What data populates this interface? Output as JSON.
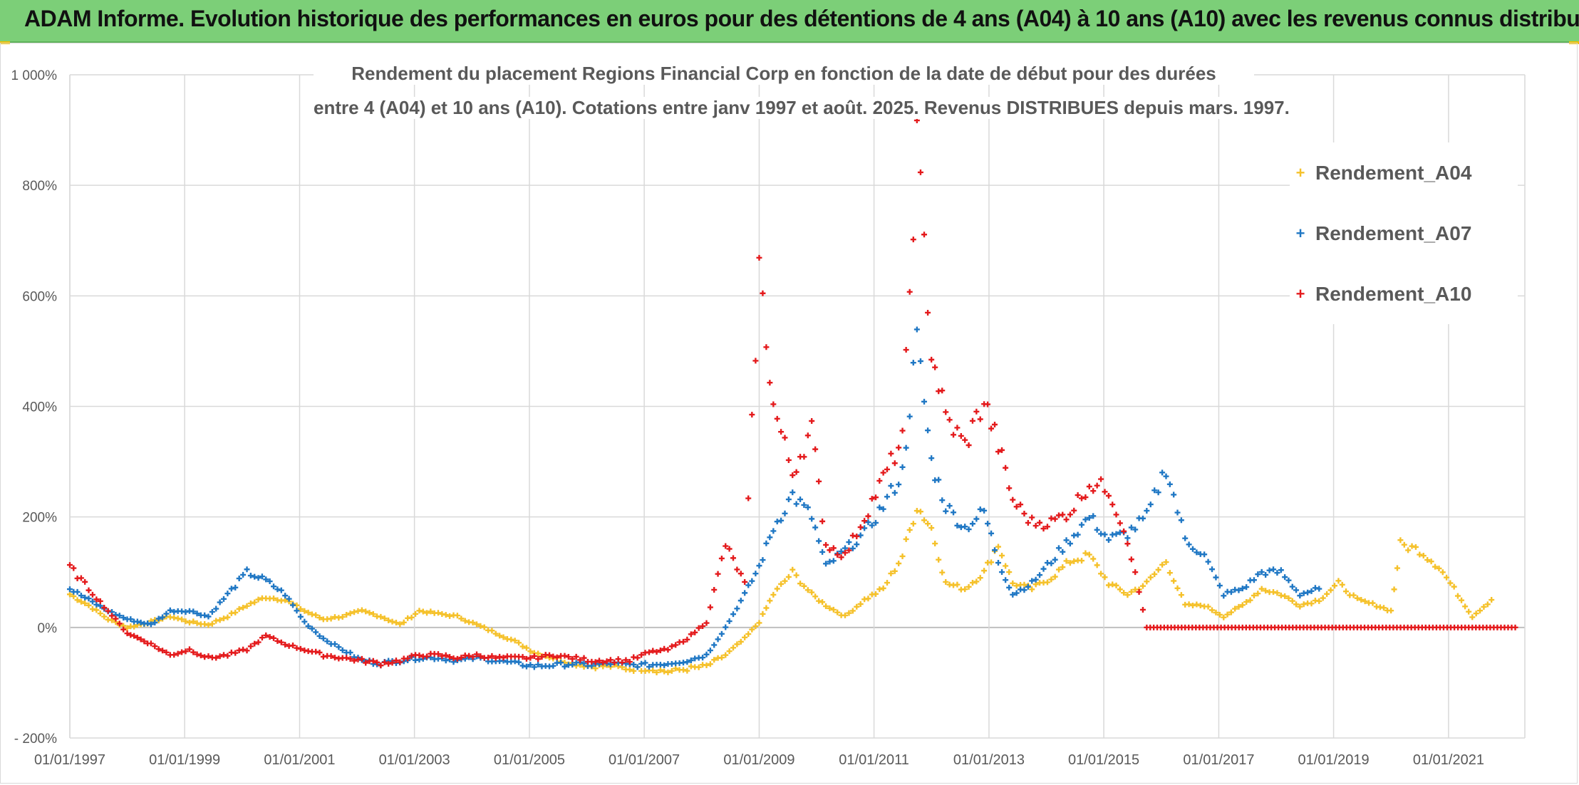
{
  "header": {
    "title": "ADAM Informe. Evolution historique des performances en euros pour des détentions de 4 ans (A04) à 10 ans (A10) avec les revenus connus distribués"
  },
  "chart_data": {
    "type": "scatter",
    "title_line1": "Rendement du placement Regions Financial Corp en fonction de la date de début pour des durées",
    "title_line2": "entre 4 (A04) et 10 ans (A10). Cotations entre janv 1997 et août. 2025. Revenus DISTRIBUES depuis mars. 1997.",
    "x_axis": {
      "type": "date",
      "range": [
        "1997-01-01",
        "2022-05-01"
      ]
    },
    "x_tick_labels": [
      "01/01/1997",
      "01/01/1999",
      "01/01/2001",
      "01/01/2003",
      "01/01/2005",
      "01/01/2007",
      "01/01/2009",
      "01/01/2011",
      "01/01/2013",
      "01/01/2015",
      "01/01/2017",
      "01/01/2019",
      "01/01/2021"
    ],
    "y_axis": {
      "unit": "percent",
      "ylim": [
        -200,
        1000
      ]
    },
    "y_tick_labels": [
      "- 200%",
      "0%",
      "200%",
      "400%",
      "600%",
      "800%",
      "1 000%"
    ],
    "grid": true,
    "legend_position": "right",
    "marker": "+",
    "series": [
      {
        "name": "Rendement_A04",
        "color": "#f5c12a",
        "points": [
          [
            "1997-01-01",
            60
          ],
          [
            "1997-05-01",
            40
          ],
          [
            "1997-09-01",
            15
          ],
          [
            "1998-01-01",
            0
          ],
          [
            "1998-06-01",
            10
          ],
          [
            "1998-10-01",
            20
          ],
          [
            "1999-02-01",
            10
          ],
          [
            "1999-06-01",
            5
          ],
          [
            "1999-10-01",
            20
          ],
          [
            "2000-02-01",
            40
          ],
          [
            "2000-06-01",
            55
          ],
          [
            "2000-10-01",
            50
          ],
          [
            "2001-02-01",
            30
          ],
          [
            "2001-06-01",
            15
          ],
          [
            "2001-10-01",
            20
          ],
          [
            "2002-02-01",
            30
          ],
          [
            "2002-06-01",
            20
          ],
          [
            "2002-10-01",
            5
          ],
          [
            "2003-02-01",
            30
          ],
          [
            "2003-06-01",
            25
          ],
          [
            "2003-10-01",
            20
          ],
          [
            "2004-02-01",
            5
          ],
          [
            "2004-06-01",
            -10
          ],
          [
            "2004-10-01",
            -25
          ],
          [
            "2005-02-01",
            -45
          ],
          [
            "2005-06-01",
            -55
          ],
          [
            "2005-10-01",
            -65
          ],
          [
            "2006-02-01",
            -70
          ],
          [
            "2006-06-01",
            -70
          ],
          [
            "2006-10-01",
            -75
          ],
          [
            "2007-02-01",
            -75
          ],
          [
            "2007-06-01",
            -80
          ],
          [
            "2007-10-01",
            -75
          ],
          [
            "2008-02-01",
            -70
          ],
          [
            "2008-06-01",
            -50
          ],
          [
            "2008-10-01",
            -20
          ],
          [
            "2009-01-01",
            10
          ],
          [
            "2009-04-01",
            60
          ],
          [
            "2009-08-01",
            100
          ],
          [
            "2009-12-01",
            60
          ],
          [
            "2010-03-01",
            40
          ],
          [
            "2010-07-01",
            20
          ],
          [
            "2010-11-01",
            50
          ],
          [
            "2011-03-01",
            70
          ],
          [
            "2011-07-01",
            130
          ],
          [
            "2011-10-01",
            220
          ],
          [
            "2012-01-01",
            180
          ],
          [
            "2012-04-01",
            80
          ],
          [
            "2012-08-01",
            70
          ],
          [
            "2012-12-01",
            100
          ],
          [
            "2013-03-01",
            150
          ],
          [
            "2013-06-01",
            80
          ],
          [
            "2013-10-01",
            70
          ],
          [
            "2014-02-01",
            90
          ],
          [
            "2014-06-01",
            120
          ],
          [
            "2014-10-01",
            130
          ],
          [
            "2015-02-01",
            80
          ],
          [
            "2015-06-01",
            60
          ],
          [
            "2015-10-01",
            80
          ],
          [
            "2016-02-01",
            120
          ],
          [
            "2016-06-01",
            40
          ],
          [
            "2016-10-01",
            40
          ],
          [
            "2017-02-01",
            20
          ],
          [
            "2017-06-01",
            40
          ],
          [
            "2017-10-01",
            70
          ],
          [
            "2018-02-01",
            60
          ],
          [
            "2018-06-01",
            40
          ],
          [
            "2018-10-01",
            50
          ],
          [
            "2019-02-01",
            80
          ],
          [
            "2019-06-01",
            50
          ],
          [
            "2019-10-01",
            40
          ],
          [
            "2020-01-01",
            30
          ],
          [
            "2020-03-01",
            150
          ],
          [
            "2020-07-01",
            140
          ],
          [
            "2020-11-01",
            110
          ],
          [
            "2021-03-01",
            60
          ],
          [
            "2021-06-01",
            20
          ],
          [
            "2021-10-01",
            50
          ]
        ]
      },
      {
        "name": "Rendement_A07",
        "color": "#1f77c4",
        "points": [
          [
            "1997-01-01",
            70
          ],
          [
            "1997-05-01",
            50
          ],
          [
            "1997-09-01",
            30
          ],
          [
            "1998-01-01",
            15
          ],
          [
            "1998-06-01",
            5
          ],
          [
            "1998-10-01",
            30
          ],
          [
            "1999-02-01",
            30
          ],
          [
            "1999-06-01",
            20
          ],
          [
            "1999-10-01",
            60
          ],
          [
            "2000-02-01",
            100
          ],
          [
            "2000-06-01",
            85
          ],
          [
            "2000-10-01",
            60
          ],
          [
            "2001-02-01",
            10
          ],
          [
            "2001-06-01",
            -20
          ],
          [
            "2001-10-01",
            -40
          ],
          [
            "2002-02-01",
            -60
          ],
          [
            "2002-06-01",
            -65
          ],
          [
            "2002-10-01",
            -60
          ],
          [
            "2003-02-01",
            -55
          ],
          [
            "2003-06-01",
            -55
          ],
          [
            "2003-10-01",
            -60
          ],
          [
            "2004-02-01",
            -55
          ],
          [
            "2004-06-01",
            -60
          ],
          [
            "2004-10-01",
            -65
          ],
          [
            "2005-02-01",
            -70
          ],
          [
            "2005-06-01",
            -68
          ],
          [
            "2005-10-01",
            -66
          ],
          [
            "2006-02-01",
            -68
          ],
          [
            "2006-06-01",
            -65
          ],
          [
            "2006-10-01",
            -68
          ],
          [
            "2007-02-01",
            -68
          ],
          [
            "2007-06-01",
            -65
          ],
          [
            "2007-10-01",
            -60
          ],
          [
            "2008-02-01",
            -50
          ],
          [
            "2008-06-01",
            0
          ],
          [
            "2008-10-01",
            60
          ],
          [
            "2009-01-01",
            110
          ],
          [
            "2009-04-01",
            180
          ],
          [
            "2009-08-01",
            240
          ],
          [
            "2009-12-01",
            200
          ],
          [
            "2010-03-01",
            110
          ],
          [
            "2010-07-01",
            140
          ],
          [
            "2010-11-01",
            170
          ],
          [
            "2011-03-01",
            220
          ],
          [
            "2011-07-01",
            280
          ],
          [
            "2011-10-01",
            520
          ],
          [
            "2012-01-01",
            300
          ],
          [
            "2012-04-01",
            220
          ],
          [
            "2012-08-01",
            180
          ],
          [
            "2012-12-01",
            210
          ],
          [
            "2013-03-01",
            120
          ],
          [
            "2013-06-01",
            60
          ],
          [
            "2013-10-01",
            80
          ],
          [
            "2014-02-01",
            120
          ],
          [
            "2014-06-01",
            160
          ],
          [
            "2014-10-01",
            200
          ],
          [
            "2015-02-01",
            160
          ],
          [
            "2015-06-01",
            170
          ],
          [
            "2015-10-01",
            200
          ],
          [
            "2016-02-01",
            290
          ],
          [
            "2016-06-01",
            160
          ],
          [
            "2016-10-01",
            130
          ],
          [
            "2017-02-01",
            60
          ],
          [
            "2017-06-01",
            70
          ],
          [
            "2017-10-01",
            100
          ],
          [
            "2018-02-01",
            100
          ],
          [
            "2018-06-01",
            60
          ],
          [
            "2018-10-01",
            70
          ]
        ]
      },
      {
        "name": "Rendement_A10",
        "color": "#e41a1c",
        "points": [
          [
            "1997-01-01",
            110
          ],
          [
            "1997-05-01",
            70
          ],
          [
            "1997-09-01",
            30
          ],
          [
            "1998-01-01",
            -10
          ],
          [
            "1998-06-01",
            -30
          ],
          [
            "1998-10-01",
            -50
          ],
          [
            "1999-02-01",
            -40
          ],
          [
            "1999-06-01",
            -55
          ],
          [
            "1999-10-01",
            -50
          ],
          [
            "2000-02-01",
            -40
          ],
          [
            "2000-06-01",
            -15
          ],
          [
            "2000-10-01",
            -30
          ],
          [
            "2001-02-01",
            -40
          ],
          [
            "2001-06-01",
            -50
          ],
          [
            "2001-10-01",
            -55
          ],
          [
            "2002-02-01",
            -60
          ],
          [
            "2002-06-01",
            -65
          ],
          [
            "2002-10-01",
            -60
          ],
          [
            "2003-02-01",
            -50
          ],
          [
            "2003-06-01",
            -50
          ],
          [
            "2003-10-01",
            -55
          ],
          [
            "2004-02-01",
            -50
          ],
          [
            "2004-06-01",
            -55
          ],
          [
            "2004-10-01",
            -55
          ],
          [
            "2005-02-01",
            -55
          ],
          [
            "2005-06-01",
            -50
          ],
          [
            "2005-10-01",
            -55
          ],
          [
            "2006-02-01",
            -60
          ],
          [
            "2006-06-01",
            -60
          ],
          [
            "2006-10-01",
            -60
          ],
          [
            "2007-02-01",
            -45
          ],
          [
            "2007-06-01",
            -40
          ],
          [
            "2007-10-01",
            -20
          ],
          [
            "2008-02-01",
            10
          ],
          [
            "2008-06-01",
            150
          ],
          [
            "2008-10-01",
            80
          ],
          [
            "2009-01-01",
            650
          ],
          [
            "2009-04-01",
            400
          ],
          [
            "2009-08-01",
            280
          ],
          [
            "2009-12-01",
            360
          ],
          [
            "2010-03-01",
            150
          ],
          [
            "2010-07-01",
            130
          ],
          [
            "2010-11-01",
            200
          ],
          [
            "2011-03-01",
            270
          ],
          [
            "2011-07-01",
            340
          ],
          [
            "2011-10-01",
            880
          ],
          [
            "2012-01-01",
            500
          ],
          [
            "2012-04-01",
            380
          ],
          [
            "2012-08-01",
            330
          ],
          [
            "2012-12-01",
            410
          ],
          [
            "2013-03-01",
            330
          ],
          [
            "2013-06-01",
            230
          ],
          [
            "2013-10-01",
            190
          ],
          [
            "2014-02-01",
            190
          ],
          [
            "2014-06-01",
            210
          ],
          [
            "2014-10-01",
            260
          ],
          [
            "2015-02-01",
            250
          ],
          [
            "2015-06-01",
            160
          ],
          [
            "2015-10-01",
            0
          ],
          [
            "2016-06-01",
            0
          ],
          [
            "2017-06-01",
            0
          ],
          [
            "2018-06-01",
            0
          ],
          [
            "2019-06-01",
            0
          ],
          [
            "2020-06-01",
            0
          ],
          [
            "2021-06-01",
            0
          ],
          [
            "2022-03-01",
            0
          ]
        ]
      }
    ]
  }
}
